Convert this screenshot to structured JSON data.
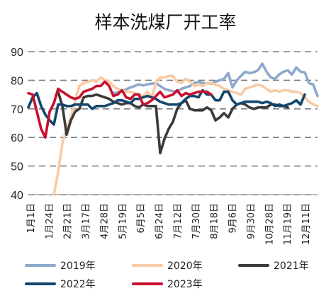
{
  "chart_data": {
    "type": "line",
    "title": "样本洗煤厂开工率",
    "xlabel": "",
    "ylabel": "",
    "ylim": [
      40,
      90
    ],
    "yticks": [
      40,
      50,
      60,
      70,
      80,
      90
    ],
    "grid": "horizontal-dashed",
    "legend_position": "bottom",
    "x_tick_labels": [
      "1月1日",
      "1月24日",
      "2月21日",
      "3月17日",
      "4月28日",
      "5月19日",
      "6月5日",
      "6月24日",
      "7月12日",
      "7月30日",
      "8月18日",
      "9月6日",
      "9月30日",
      "10月28日",
      "11月19日",
      "12月11日"
    ],
    "series": [
      {
        "name": "2019年",
        "color": "#8EA9CC",
        "values": [
          null,
          null,
          null,
          null,
          null,
          null,
          null,
          null,
          null,
          null,
          null,
          null,
          null,
          null,
          null,
          null,
          null,
          null,
          null,
          null,
          75.5,
          75.8,
          76.3,
          76.8,
          77.5,
          78.0,
          78.6,
          78.2,
          78.6,
          78.8,
          79.0,
          78.0,
          77.0,
          76.5,
          76.2,
          76.0,
          77.0,
          77.5,
          78.0,
          79.0,
          79.5,
          79.0,
          79.0,
          78.8,
          79.5,
          80.0,
          80.5,
          82.5,
          77.5,
          80.0,
          81.5,
          83.0,
          82.5,
          82.8,
          83.5,
          85.8,
          83.0,
          81.0,
          80.5,
          82.0,
          83.0,
          83.5,
          82.0,
          84.5,
          83.0,
          82.8,
          79.0,
          78.5,
          74.5
        ]
      },
      {
        "name": "2020年",
        "color": "#F8CBA4",
        "values": [
          null,
          null,
          null,
          null,
          null,
          null,
          40.0,
          48.0,
          58.0,
          63.0,
          67.0,
          73.0,
          78.0,
          79.0,
          79.5,
          80.0,
          79.5,
          81.0,
          80.0,
          79.5,
          78.0,
          77.0,
          76.5,
          76.0,
          76.0,
          75.5,
          75.0,
          74.5,
          76.0,
          74.0,
          79.0,
          81.0,
          81.0,
          81.5,
          81.5,
          79.5,
          79.0,
          80.5,
          79.5,
          78.0,
          78.5,
          78.0,
          79.0,
          79.0,
          78.5,
          78.0,
          77.0,
          76.5,
          76.0,
          75.5,
          75.0,
          77.0,
          77.5,
          78.0,
          78.5,
          78.0,
          77.0,
          76.0,
          76.5,
          76.0,
          76.5,
          76.5,
          76.0,
          76.0,
          75.5,
          74.0,
          72.5,
          71.5,
          71.0
        ]
      },
      {
        "name": "2021年",
        "color": "#3A3A3A",
        "values": [
          null,
          null,
          null,
          null,
          null,
          null,
          null,
          76.0,
          71.0,
          61.0,
          66.0,
          69.0,
          70.0,
          74.0,
          74.5,
          74.5,
          75.0,
          74.5,
          74.0,
          73.5,
          72.5,
          72.0,
          71.5,
          72.0,
          72.0,
          71.0,
          70.5,
          71.5,
          71.0,
          71.0,
          71.0,
          54.5,
          59.5,
          63.0,
          65.5,
          70.0,
          72.0,
          73.0,
          70.0,
          69.5,
          69.5,
          69.5,
          70.5,
          69.5,
          66.0,
          67.0,
          68.5,
          67.0,
          70.0,
          71.5,
          72.0,
          71.5,
          70.5,
          70.0,
          70.5,
          70.5,
          70.5,
          71.5,
          71.5,
          71.0,
          71.0,
          70.5
        ]
      },
      {
        "name": "2022年",
        "color": "#12466E",
        "values": [
          70.5,
          74.0,
          75.5,
          71.0,
          68.0,
          66.0,
          64.5,
          71.5,
          71.5,
          71.0,
          71.0,
          71.5,
          71.5,
          71.5,
          71.5,
          70.0,
          71.0,
          71.0,
          71.0,
          71.5,
          72.0,
          73.0,
          73.0,
          72.5,
          72.0,
          73.5,
          73.5,
          74.0,
          74.5,
          74.0,
          73.5,
          72.5,
          72.0,
          71.5,
          71.5,
          71.5,
          72.0,
          73.5,
          74.5,
          74.5,
          74.0,
          76.5,
          75.0,
          75.0,
          73.0,
          73.0,
          76.0,
          76.0,
          73.0,
          71.5,
          72.0,
          72.5,
          72.5,
          72.5,
          72.5,
          72.0,
          72.5,
          72.0,
          71.0,
          71.5,
          71.0,
          71.5,
          72.0,
          73.0,
          71.5,
          75.0
        ]
      },
      {
        "name": "2023年",
        "color": "#C8102E",
        "values": [
          75.5,
          75.0,
          69.0,
          63.0,
          60.0,
          69.0,
          72.0,
          77.0,
          76.0,
          75.0,
          74.0,
          73.5,
          74.0,
          76.0,
          76.5,
          77.0,
          78.0,
          78.0,
          79.5,
          78.0,
          74.5,
          75.0,
          76.5,
          74.0,
          73.5,
          75.0,
          75.0,
          71.5,
          72.0,
          73.0,
          74.5,
          76.0,
          74.0,
          74.5,
          75.0,
          76.5,
          74.5,
          75.5,
          75.0,
          75.5,
          76.0,
          76.0,
          76.0,
          75.0
        ]
      }
    ]
  }
}
